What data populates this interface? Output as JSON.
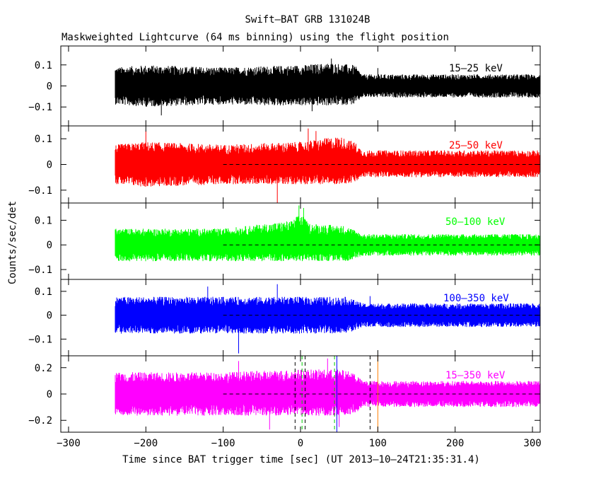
{
  "title": "Swift–BAT GRB 131024B",
  "subtitle": "Maskweighted Lightcurve (64 ms binning) using the flight position",
  "xlabel": "Time since BAT trigger time [sec] (UT 2013–10–24T21:35:31.4)",
  "ylabel": "Counts/sec/det",
  "chart_data": {
    "type": "line",
    "title": "Swift–BAT GRB 131024B",
    "subtitle": "Maskweighted Lightcurve (64 ms binning) using the flight position",
    "xlabel": "Time since BAT trigger time [sec] (UT 2013–10–24T21:35:31.4)",
    "ylabel": "Counts/sec/det",
    "xlim": [
      -310,
      310
    ],
    "x_ticks": [
      -300,
      -200,
      -100,
      0,
      100,
      200,
      300
    ],
    "x_tick_labels": [
      "−300",
      "−200",
      "−100",
      "0",
      "100",
      "200",
      "300"
    ],
    "data_x_range": [
      -240,
      310
    ],
    "panels": [
      {
        "name": "15–25 keV",
        "color": "#000000",
        "ylim": [
          -0.19,
          0.19
        ],
        "y_ticks": [
          -0.1,
          0,
          0.1
        ],
        "y_tick_labels": [
          "−0.1",
          "0",
          "0.1"
        ],
        "zero_line": false,
        "envelope": {
          "x": [
            -240,
            -200,
            -100,
            -50,
            0,
            40,
            70,
            80,
            100,
            200,
            310
          ],
          "upper": [
            0.08,
            0.09,
            0.08,
            0.085,
            0.09,
            0.1,
            0.09,
            0.05,
            0.05,
            0.05,
            0.05
          ],
          "lower": [
            -0.08,
            -0.09,
            -0.08,
            -0.085,
            -0.085,
            -0.085,
            -0.08,
            -0.05,
            -0.05,
            -0.05,
            -0.05
          ]
        },
        "spikes": [
          [
            -180,
            -0.14
          ],
          [
            15,
            -0.12
          ],
          [
            40,
            0.13
          ],
          [
            100,
            0.085
          ]
        ]
      },
      {
        "name": "25–50 keV",
        "color": "#ff0000",
        "ylim": [
          -0.15,
          0.15
        ],
        "y_ticks": [
          -0.1,
          0,
          0.1
        ],
        "y_tick_labels": [
          "−0.1",
          "0",
          "0.1"
        ],
        "zero_line": true,
        "envelope": {
          "x": [
            -240,
            -200,
            -100,
            0,
            50,
            70,
            80,
            100,
            200,
            310
          ],
          "upper": [
            0.07,
            0.08,
            0.07,
            0.08,
            0.1,
            0.08,
            0.05,
            0.05,
            0.05,
            0.05
          ],
          "lower": [
            -0.07,
            -0.08,
            -0.07,
            -0.07,
            -0.07,
            -0.065,
            -0.045,
            -0.045,
            -0.045,
            -0.045
          ]
        },
        "spikes": [
          [
            -200,
            0.13
          ],
          [
            -30,
            -0.15
          ],
          [
            10,
            0.14
          ],
          [
            20,
            0.13
          ]
        ]
      },
      {
        "name": "50–100 keV",
        "color": "#00ff00",
        "ylim": [
          -0.14,
          0.17
        ],
        "y_ticks": [
          -0.1,
          0,
          0.1
        ],
        "y_tick_labels": [
          "−0.1",
          "0",
          "0.1"
        ],
        "zero_line": true,
        "envelope": {
          "x": [
            -240,
            -100,
            -10,
            0,
            10,
            60,
            80,
            100,
            200,
            310
          ],
          "upper": [
            0.06,
            0.06,
            0.09,
            0.12,
            0.08,
            0.07,
            0.04,
            0.04,
            0.04,
            0.04
          ],
          "lower": [
            -0.06,
            -0.06,
            -0.06,
            -0.06,
            -0.06,
            -0.06,
            -0.04,
            -0.04,
            -0.04,
            -0.04
          ]
        },
        "spikes": [
          [
            -2,
            0.16
          ],
          [
            4,
            0.15
          ]
        ]
      },
      {
        "name": "100–350 keV",
        "color": "#0000ff",
        "ylim": [
          -0.17,
          0.15
        ],
        "y_ticks": [
          -0.1,
          0,
          0.1
        ],
        "y_tick_labels": [
          "−0.1",
          "0",
          "0.1"
        ],
        "zero_line": true,
        "envelope": {
          "x": [
            -240,
            -100,
            0,
            60,
            80,
            100,
            200,
            310
          ],
          "upper": [
            0.07,
            0.07,
            0.07,
            0.07,
            0.045,
            0.045,
            0.045,
            0.045
          ],
          "lower": [
            -0.07,
            -0.07,
            -0.07,
            -0.07,
            -0.045,
            -0.045,
            -0.045,
            -0.045
          ]
        },
        "spikes": [
          [
            -80,
            -0.16
          ],
          [
            -120,
            0.12
          ],
          [
            -30,
            0.13
          ],
          [
            90,
            0.08
          ]
        ]
      },
      {
        "name": "15–350 keV",
        "color": "#ff00ff",
        "ylim": [
          -0.29,
          0.29
        ],
        "y_ticks": [
          -0.2,
          0,
          0.2
        ],
        "y_tick_labels": [
          "−0.2",
          "0",
          "0.2"
        ],
        "zero_line": true,
        "envelope": {
          "x": [
            -240,
            -100,
            0,
            50,
            70,
            80,
            100,
            200,
            310
          ],
          "upper": [
            0.15,
            0.15,
            0.17,
            0.17,
            0.15,
            0.09,
            0.09,
            0.09,
            0.09
          ],
          "lower": [
            -0.15,
            -0.15,
            -0.15,
            -0.15,
            -0.14,
            -0.09,
            -0.09,
            -0.09,
            -0.09
          ]
        },
        "spikes": [
          [
            -40,
            -0.27
          ],
          [
            -80,
            0.25
          ],
          [
            35,
            0.27
          ],
          [
            50,
            -0.25
          ]
        ],
        "markers": [
          {
            "x": -7,
            "color": "#000000",
            "style": "dashed"
          },
          {
            "x": 2,
            "color": "#00cc00",
            "style": "dashed"
          },
          {
            "x": 6,
            "color": "#000000",
            "style": "dashed"
          },
          {
            "x": 44,
            "color": "#00cc00",
            "style": "dashed"
          },
          {
            "x": 47,
            "color": "#0000ff",
            "style": "solid"
          },
          {
            "x": 90,
            "color": "#000000",
            "style": "dashed"
          },
          {
            "x": 100,
            "color": "#ff8000",
            "style": "solid"
          }
        ]
      }
    ]
  }
}
